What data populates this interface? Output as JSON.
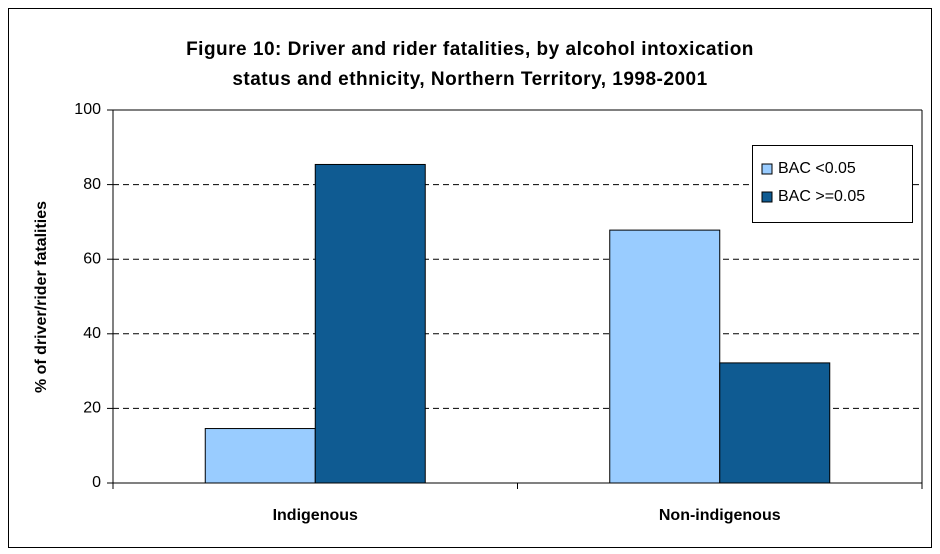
{
  "chart_data": {
    "type": "bar",
    "title": [
      "Figure 10: Driver and rider fatalities, by alcohol intoxication",
      "status and ethnicity, Northern Territory, 1998-2001"
    ],
    "y_label": "% of driver/rider fatalities",
    "categories": [
      "Indigenous",
      "Non-indigenous"
    ],
    "series": [
      {
        "name": "BAC <0.05",
        "color": "#99ccff",
        "values": [
          14.6,
          67.8
        ]
      },
      {
        "name": "BAC >=0.05",
        "color": "#0f5b92",
        "values": [
          85.4,
          32.2
        ]
      }
    ],
    "ylim": [
      0,
      100
    ],
    "yticks": [
      0,
      20,
      40,
      60,
      80,
      100
    ],
    "grid": true,
    "legend": "upper right"
  }
}
